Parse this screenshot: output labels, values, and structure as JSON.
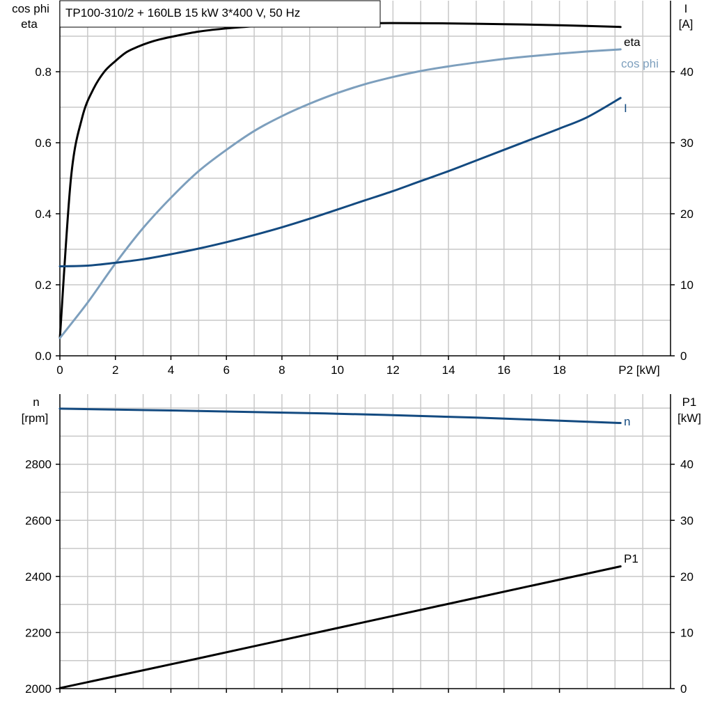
{
  "title": "TP100-310/2 + 160LB   15 kW   3*400 V, 50 Hz",
  "colors": {
    "black": "#000000",
    "light_blue": "#7d9fbd",
    "dark_blue": "#134a80",
    "grid": "#c8c8c8"
  },
  "chart_data": [
    {
      "type": "line",
      "name": "motor-efficiency-panel",
      "x_axis": {
        "label": "P2 [kW]",
        "range": [
          0,
          22
        ],
        "ticks": [
          0,
          2,
          4,
          6,
          8,
          10,
          12,
          14,
          16,
          18
        ],
        "tick_labels": [
          "0",
          "2",
          "4",
          "6",
          "8",
          "10",
          "12",
          "14",
          "16",
          "18"
        ]
      },
      "y_left": {
        "label_lines": [
          "cos phi",
          "eta"
        ],
        "range": [
          0,
          1.0
        ],
        "ticks": [
          0,
          0.2,
          0.4,
          0.6,
          0.8
        ],
        "tick_labels": [
          "0.0",
          "0.2",
          "0.4",
          "0.6",
          "0.8"
        ]
      },
      "y_right": {
        "label_lines": [
          "I",
          "[A]"
        ],
        "range": [
          0,
          50
        ],
        "ticks": [
          0,
          10,
          20,
          30,
          40
        ],
        "tick_labels": [
          "0",
          "10",
          "20",
          "30",
          "40"
        ]
      },
      "grid": true,
      "series": [
        {
          "name": "eta",
          "axis": "left",
          "color": "#000000",
          "x": [
            0,
            0.4,
            0.8,
            1.2,
            1.6,
            2.0,
            2.4,
            2.8,
            3.2,
            3.6,
            4.0,
            5,
            6,
            7,
            8,
            10,
            12,
            14,
            16,
            18,
            20.2
          ],
          "y": [
            0.05,
            0.5,
            0.67,
            0.75,
            0.8,
            0.83,
            0.855,
            0.87,
            0.882,
            0.891,
            0.898,
            0.913,
            0.922,
            0.928,
            0.932,
            0.936,
            0.937,
            0.936,
            0.934,
            0.931,
            0.926
          ]
        },
        {
          "name": "cos phi",
          "axis": "left",
          "color": "#7d9fbd",
          "x": [
            0,
            1,
            2,
            3,
            4,
            5,
            6,
            7,
            8,
            9,
            10,
            11,
            12,
            13,
            14,
            15,
            16,
            17,
            18,
            19,
            20.2
          ],
          "y": [
            0.05,
            0.15,
            0.26,
            0.36,
            0.445,
            0.52,
            0.58,
            0.633,
            0.675,
            0.71,
            0.74,
            0.765,
            0.785,
            0.802,
            0.815,
            0.826,
            0.836,
            0.844,
            0.851,
            0.857,
            0.863
          ]
        },
        {
          "name": "I",
          "axis": "right",
          "color": "#134a80",
          "x": [
            0,
            1,
            2,
            3,
            4,
            5,
            6,
            7,
            8,
            9,
            10,
            11,
            12,
            13,
            14,
            15,
            16,
            17,
            18,
            19,
            20.2
          ],
          "y": [
            12.6,
            12.7,
            13.1,
            13.6,
            14.3,
            15.1,
            16.0,
            17.0,
            18.1,
            19.3,
            20.6,
            21.9,
            23.2,
            24.6,
            26.0,
            27.5,
            29.0,
            30.5,
            32.0,
            33.6,
            36.3
          ]
        }
      ]
    },
    {
      "type": "line",
      "name": "speed-power-panel",
      "x_axis": {
        "range": [
          0,
          22
        ],
        "ticks": [
          0,
          2,
          4,
          6,
          8,
          10,
          12,
          14,
          16,
          18
        ]
      },
      "y_left": {
        "label_lines": [
          "n",
          "[rpm]"
        ],
        "range": [
          2000,
          3050
        ],
        "ticks": [
          2000,
          2200,
          2400,
          2600,
          2800
        ],
        "tick_labels": [
          "2000",
          "2200",
          "2400",
          "2600",
          "2800"
        ]
      },
      "y_right": {
        "label_lines": [
          "P1",
          "[kW]"
        ],
        "range": [
          0,
          52.5
        ],
        "ticks": [
          0,
          10,
          20,
          30,
          40
        ],
        "tick_labels": [
          "0",
          "10",
          "20",
          "30",
          "40"
        ]
      },
      "grid": true,
      "series": [
        {
          "name": "n",
          "axis": "left",
          "color": "#134a80",
          "x": [
            0,
            5,
            10,
            15,
            20.2
          ],
          "y": [
            2998,
            2990,
            2980,
            2966,
            2947
          ]
        },
        {
          "name": "P1",
          "axis": "right",
          "color": "#000000",
          "x": [
            0,
            5,
            10,
            15,
            20.2
          ],
          "y": [
            0.1,
            5.4,
            10.8,
            16.2,
            21.8
          ]
        }
      ]
    }
  ]
}
